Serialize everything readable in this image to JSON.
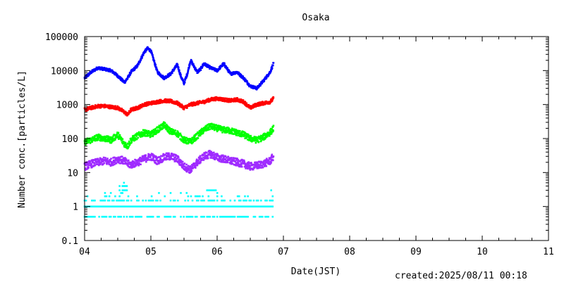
{
  "created_label": "created:2025/08/11 00:18",
  "chart_data": {
    "type": "scatter",
    "title": "Osaka",
    "xlabel": "Date(JST)",
    "ylabel": "Number conc.[particles/L]",
    "y_scale": "log",
    "ylim": [
      0.1,
      100000
    ],
    "xlim": [
      4,
      11
    ],
    "x_ticks": [
      "04",
      "05",
      "06",
      "07",
      "08",
      "09",
      "10",
      "11"
    ],
    "y_ticks": [
      "0.1",
      "1",
      "10",
      "100",
      "1000",
      "10000",
      "100000"
    ],
    "grid": false,
    "legend": "none",
    "series": [
      {
        "color": "#0000ff",
        "x": [
          4.0,
          4.1,
          4.2,
          4.3,
          4.4,
          4.5,
          4.6,
          4.65,
          4.7,
          4.8,
          4.9,
          4.95,
          5.0,
          5.1,
          5.2,
          5.3,
          5.4,
          5.45,
          5.5,
          5.55,
          5.6,
          5.7,
          5.75,
          5.8,
          5.9,
          6.0,
          6.1,
          6.2,
          6.3,
          6.4,
          6.5,
          6.6,
          6.7,
          6.8,
          6.85
        ],
        "values": [
          6000,
          9000,
          12000,
          11000,
          10000,
          7000,
          4500,
          6000,
          9000,
          14000,
          35000,
          45000,
          38000,
          9000,
          6000,
          8000,
          15000,
          7000,
          4200,
          8000,
          20000,
          9000,
          11000,
          16000,
          12000,
          10000,
          16000,
          8000,
          9000,
          6000,
          3500,
          3000,
          5000,
          9000,
          16000
        ]
      },
      {
        "color": "#ff0000",
        "x": [
          4.0,
          4.1,
          4.2,
          4.3,
          4.4,
          4.5,
          4.6,
          4.65,
          4.7,
          4.8,
          4.9,
          5.0,
          5.1,
          5.2,
          5.3,
          5.4,
          5.5,
          5.6,
          5.7,
          5.8,
          5.9,
          6.0,
          6.1,
          6.2,
          6.3,
          6.4,
          6.5,
          6.6,
          6.7,
          6.8,
          6.85
        ],
        "values": [
          700,
          800,
          900,
          900,
          850,
          800,
          600,
          500,
          700,
          800,
          1000,
          1100,
          1200,
          1300,
          1250,
          1100,
          800,
          1000,
          1100,
          1200,
          1400,
          1500,
          1400,
          1300,
          1400,
          1200,
          800,
          1000,
          1100,
          1200,
          1500
        ]
      },
      {
        "color": "#00ff00",
        "x": [
          4.0,
          4.1,
          4.2,
          4.3,
          4.4,
          4.5,
          4.6,
          4.65,
          4.7,
          4.8,
          4.9,
          5.0,
          5.1,
          5.2,
          5.3,
          5.4,
          5.5,
          5.6,
          5.7,
          5.8,
          5.9,
          6.0,
          6.1,
          6.2,
          6.3,
          6.4,
          6.5,
          6.6,
          6.7,
          6.8,
          6.85
        ],
        "values": [
          80,
          90,
          110,
          100,
          90,
          130,
          70,
          60,
          90,
          120,
          150,
          130,
          180,
          250,
          160,
          140,
          90,
          80,
          120,
          180,
          230,
          200,
          180,
          170,
          150,
          130,
          100,
          90,
          110,
          150,
          200
        ]
      },
      {
        "color": "#9f2bff",
        "x": [
          4.0,
          4.1,
          4.2,
          4.3,
          4.4,
          4.5,
          4.6,
          4.65,
          4.7,
          4.8,
          4.9,
          5.0,
          5.1,
          5.2,
          5.3,
          5.4,
          5.5,
          5.6,
          5.7,
          5.8,
          5.9,
          6.0,
          6.1,
          6.2,
          6.3,
          6.4,
          6.5,
          6.6,
          6.7,
          6.8,
          6.85
        ],
        "values": [
          15,
          18,
          20,
          22,
          20,
          25,
          22,
          18,
          17,
          20,
          25,
          30,
          22,
          28,
          30,
          25,
          15,
          12,
          20,
          30,
          35,
          28,
          25,
          22,
          20,
          18,
          15,
          16,
          18,
          22,
          30
        ]
      },
      {
        "color": "#00ffff",
        "levels": [
          0.5,
          1,
          1.5,
          2,
          2.5,
          3,
          3.5,
          4,
          5
        ],
        "x_range": [
          4.0,
          6.85
        ]
      }
    ]
  }
}
